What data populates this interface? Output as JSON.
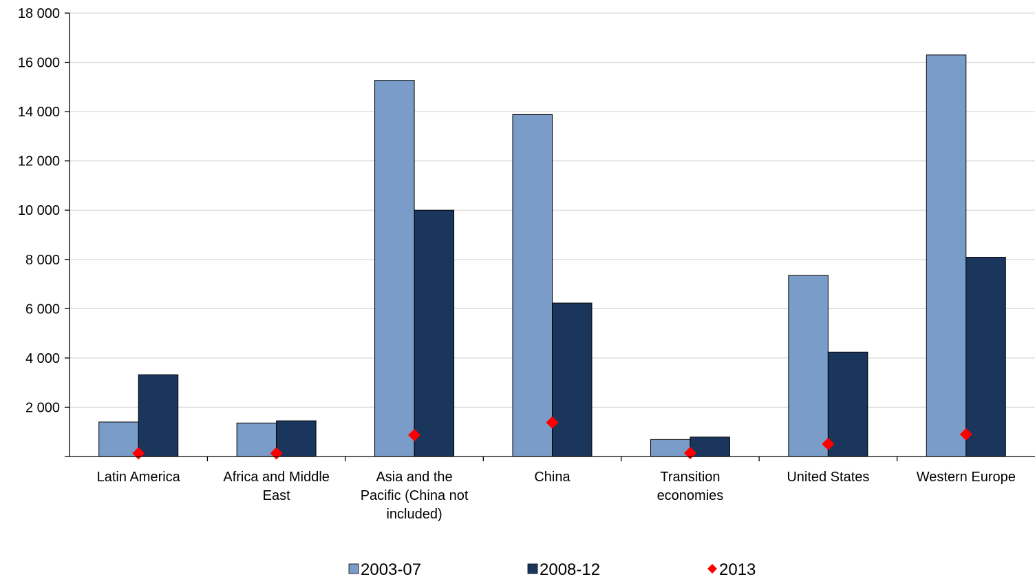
{
  "chart_data": {
    "type": "bar",
    "title": "",
    "xlabel": "",
    "ylabel": "",
    "ylim": [
      0,
      18000
    ],
    "yticks": [
      {
        "value": 2000,
        "label": "2 000"
      },
      {
        "value": 4000,
        "label": "4 000"
      },
      {
        "value": 6000,
        "label": "6 000"
      },
      {
        "value": 8000,
        "label": "8 000"
      },
      {
        "value": 10000,
        "label": "10 000"
      },
      {
        "value": 12000,
        "label": "12 000"
      },
      {
        "value": 14000,
        "label": "14 000"
      },
      {
        "value": 16000,
        "label": "16 000"
      },
      {
        "value": 18000,
        "label": "18 000"
      }
    ],
    "grid": true,
    "legend_position": "bottom",
    "categories": [
      [
        "Latin America"
      ],
      [
        "Africa and Middle",
        "East"
      ],
      [
        "Asia and the",
        "Pacific (China not",
        "included)"
      ],
      [
        "China"
      ],
      [
        "Transition",
        "economies"
      ],
      [
        "United States"
      ],
      [
        "Western Europe"
      ]
    ],
    "series": [
      {
        "name": "2003-07",
        "kind": "bar",
        "color": "#7A9CC8",
        "values": [
          1400,
          1360,
          15270,
          13880,
          690,
          7350,
          16300
        ]
      },
      {
        "name": "2008-12",
        "kind": "bar",
        "color": "#1B365C",
        "values": [
          3320,
          1450,
          10000,
          6230,
          790,
          4240,
          8090
        ]
      },
      {
        "name": "2013",
        "kind": "marker",
        "color": "#FF0000",
        "values": [
          130,
          130,
          870,
          1380,
          140,
          510,
          900
        ]
      }
    ]
  }
}
